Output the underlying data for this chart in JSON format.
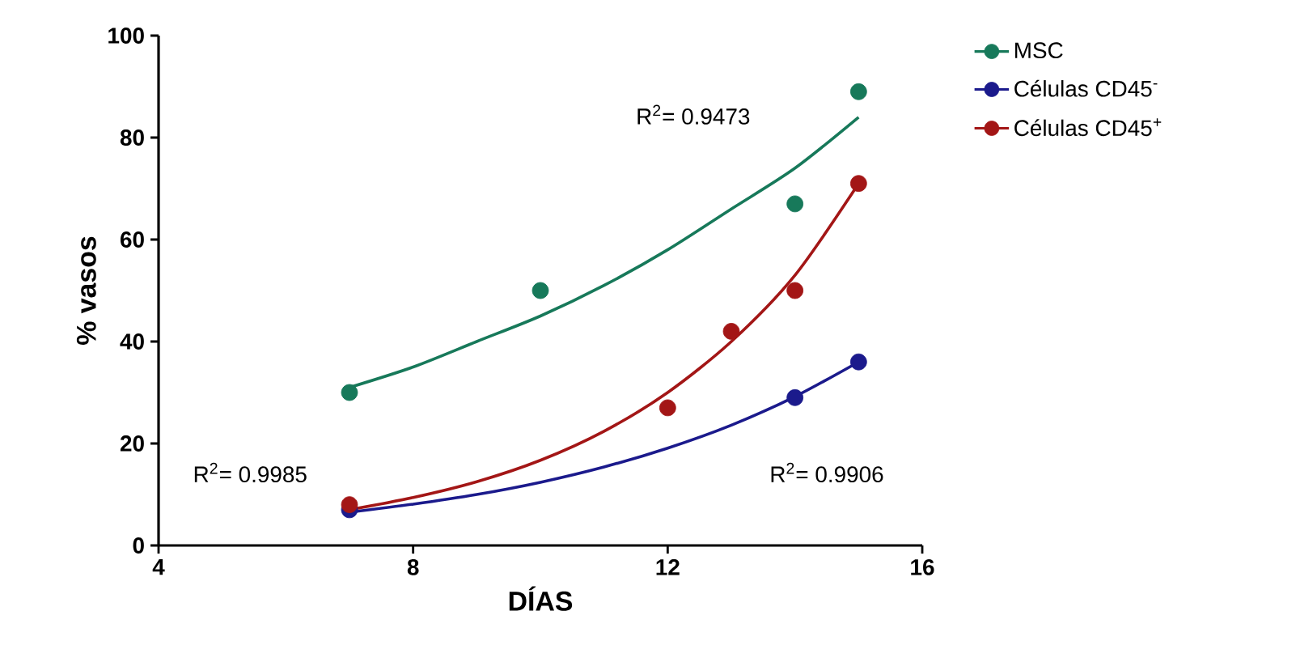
{
  "chart_data": {
    "type": "scatter",
    "xlabel": "DÍAS",
    "ylabel": "% vasos",
    "xlim": [
      4,
      16
    ],
    "ylim": [
      0,
      100
    ],
    "xticks": [
      4,
      8,
      12,
      16
    ],
    "yticks": [
      0,
      20,
      40,
      60,
      80,
      100
    ],
    "grid": false,
    "legend": "right",
    "series": [
      {
        "marker": "circle",
        "name": "MSC",
        "color": "#17795a",
        "x": [
          7,
          10,
          14,
          15
        ],
        "values": [
          30,
          50,
          67,
          89
        ]
      },
      {
        "marker": "circle",
        "name": "Células CD45$^{-}$",
        "color": "#1b1a8c",
        "x": [
          7,
          14,
          15
        ],
        "values": [
          7,
          29,
          36
        ]
      },
      {
        "marker": "circle",
        "name": "Células CD45$^{+}$",
        "color": "#a31616",
        "x": [
          7,
          12,
          13,
          14,
          15
        ],
        "values": [
          8,
          27,
          42,
          50,
          71
        ]
      },
      {
        "type": "line",
        "marker": "none",
        "color": "#17795a",
        "x": [
          7,
          8,
          9,
          10,
          11,
          12,
          13,
          14,
          15
        ],
        "values": [
          31,
          35,
          40,
          45,
          51,
          58,
          66,
          74,
          84
        ]
      },
      {
        "type": "line",
        "marker": "none",
        "color": "#1b1a8c",
        "x": [
          7,
          8,
          9,
          10,
          11,
          12,
          13,
          14,
          15
        ],
        "values": [
          6.5,
          8.1,
          10,
          12.4,
          15.4,
          19.1,
          23.6,
          29.2,
          36
        ]
      },
      {
        "type": "line",
        "marker": "none",
        "color": "#a31616",
        "x": [
          7,
          8,
          9,
          10,
          11,
          12,
          13,
          14,
          15
        ],
        "values": [
          7,
          9.4,
          12.5,
          16.7,
          22.4,
          30,
          40,
          53,
          71
        ]
      }
    ],
    "annotations": [
      "R$^{2}$= 0.9473",
      "R$^{2}$= 0.9985",
      "R$^{2}$= 0.9906"
    ]
  }
}
